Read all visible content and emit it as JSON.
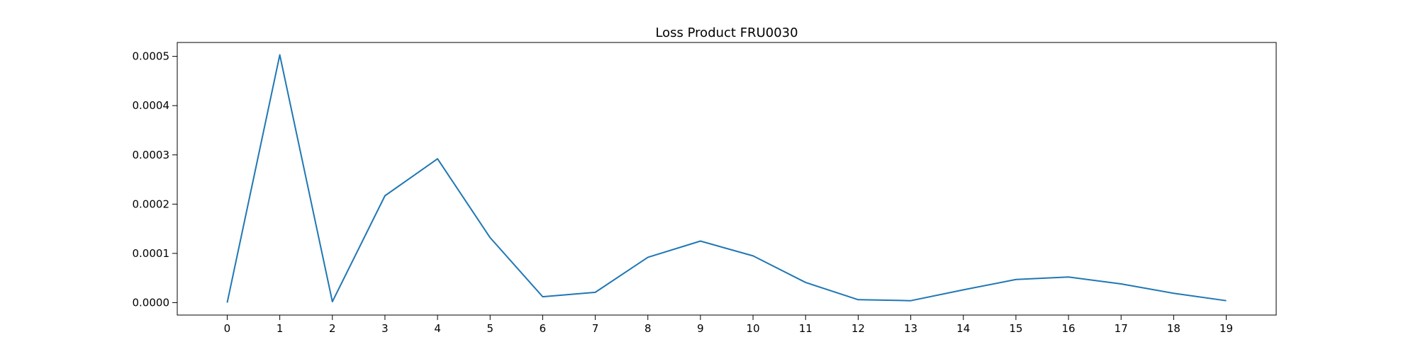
{
  "chart_data": {
    "type": "line",
    "title": "Loss Product FRU0030",
    "xlabel": "",
    "ylabel": "",
    "x": [
      0,
      1,
      2,
      3,
      4,
      5,
      6,
      7,
      8,
      9,
      10,
      11,
      12,
      13,
      14,
      15,
      16,
      17,
      18,
      19
    ],
    "series": [
      {
        "values": [
          0.0,
          0.000503,
          2e-06,
          0.000217,
          0.000292,
          0.000132,
          1.2e-05,
          2.1e-05,
          9.2e-05,
          0.000125,
          9.5e-05,
          4.1e-05,
          6e-06,
          4e-06,
          2.6e-05,
          4.7e-05,
          5.2e-05,
          3.8e-05,
          1.9e-05,
          4e-06
        ],
        "color": "#1f77b4"
      }
    ],
    "xlim": [
      -0.95,
      19.95
    ],
    "ylim": [
      -2.52e-05,
      0.0005282
    ],
    "yticks": [
      0.0,
      0.0001,
      0.0002,
      0.0003,
      0.0004,
      0.0005
    ],
    "ytick_labels": [
      "0.0000",
      "0.0001",
      "0.0002",
      "0.0003",
      "0.0004",
      "0.0005"
    ],
    "xtick_labels": [
      "0",
      "1",
      "2",
      "3",
      "4",
      "5",
      "6",
      "7",
      "8",
      "9",
      "10",
      "11",
      "12",
      "13",
      "14",
      "15",
      "16",
      "17",
      "18",
      "19"
    ],
    "grid": false,
    "legend": "none"
  }
}
